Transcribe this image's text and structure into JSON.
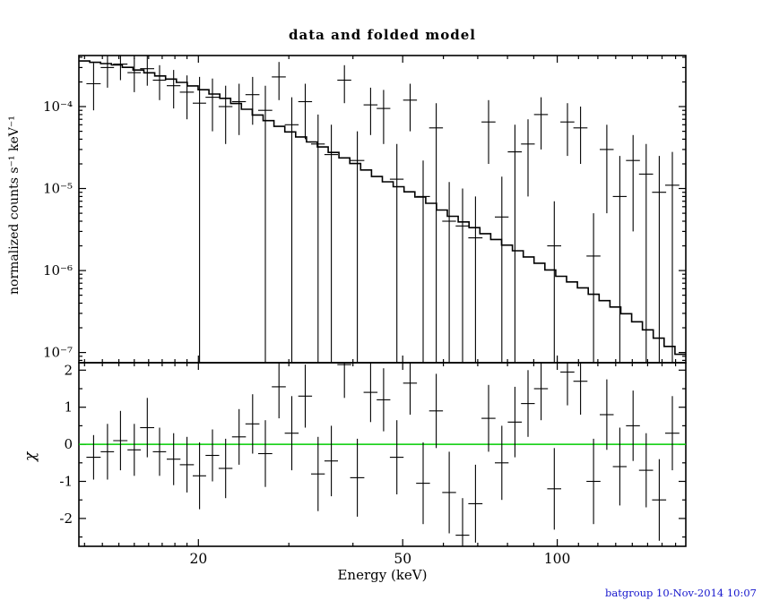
{
  "header": {
    "title": "data and folded model"
  },
  "footer": {
    "credit": "batgroup 10-Nov-2014 10:07",
    "credit_color": "#1515cc"
  },
  "colors": {
    "frame": "#000000",
    "model_line": "#000000",
    "data_marks": "#000000",
    "zero_line": "#00cc00",
    "background": "#ffffff"
  },
  "chart_data": {
    "type": "scatter",
    "subtype": "xspec-spectrum-with-residuals",
    "title": "data and folded model",
    "x_axis": {
      "label": "Energy (keV)",
      "scale": "log",
      "range": [
        11.7,
        178
      ],
      "major_ticks": [
        {
          "v": 20,
          "label": "20"
        },
        {
          "v": 50,
          "label": "50"
        },
        {
          "v": 100,
          "label": "100"
        }
      ],
      "minor_ticks": [
        12,
        13,
        14,
        15,
        16,
        17,
        18,
        19,
        30,
        40,
        60,
        70,
        80,
        90,
        110,
        120,
        130,
        140,
        150,
        160,
        170
      ]
    },
    "top_panel": {
      "ylabel": "normalized counts s⁻¹ keV⁻¹",
      "scale": "log",
      "range": [
        7.5e-08,
        0.00042
      ],
      "major_ticks": [
        {
          "v": 0.0001,
          "label": "10⁻⁴"
        },
        {
          "v": 1e-05,
          "label": "10⁻⁵"
        },
        {
          "v": 1e-06,
          "label": "10⁻⁶"
        },
        {
          "v": 1e-07,
          "label": "10⁻⁷"
        }
      ]
    },
    "bottom_panel": {
      "ylabel": "χ",
      "scale": "linear",
      "range": [
        -2.75,
        2.2
      ],
      "major_ticks": [
        {
          "v": -2,
          "label": "-2"
        },
        {
          "v": -1,
          "label": "-1"
        },
        {
          "v": 0,
          "label": "0"
        },
        {
          "v": 1,
          "label": "1"
        },
        {
          "v": 2,
          "label": "2"
        }
      ],
      "minor_ticks": [
        -2.5,
        -1.5,
        -0.5,
        0.5,
        1.5
      ],
      "zero_line": 0
    },
    "model_histogram": {
      "description": "folded model, stepped histogram, read from plot",
      "energies": [
        12,
        14,
        16,
        18,
        20,
        23,
        26,
        30,
        35,
        40,
        45,
        50,
        55,
        61,
        68,
        75,
        83,
        91,
        100,
        110,
        122,
        135,
        150,
        165,
        178
      ],
      "values": [
        0.00036,
        0.00032,
        0.00026,
        0.00021,
        0.00017,
        0.00012,
        8e-05,
        5e-05,
        3.2e-05,
        2.1e-05,
        1.35e-05,
        1e-05,
        7.5e-06,
        5e-06,
        3.5e-06,
        2.5e-06,
        1.8e-06,
        1.3e-06,
        9e-07,
        6.6e-07,
        4.5e-07,
        3.1e-07,
        1.9e-07,
        1.2e-07,
        8.5e-08
      ]
    },
    "points_columns": [
      "energy_keV",
      "xerr_keV",
      "value",
      "err_lo_value",
      "err_hi_value",
      "chi",
      "chi_err"
    ],
    "points": [
      [
        12.5,
        0.4,
        0.00019,
        9e-05,
        0.00034,
        -0.35,
        0.6
      ],
      [
        13.3,
        0.4,
        0.0003,
        0.00017,
        0.00044,
        -0.2,
        0.75
      ],
      [
        14.1,
        0.45,
        0.00033,
        0.00021,
        0.00046,
        0.1,
        0.8
      ],
      [
        15.0,
        0.45,
        0.00026,
        0.00015,
        0.00039,
        -0.15,
        0.7
      ],
      [
        15.9,
        0.5,
        0.00029,
        0.00018,
        0.00042,
        0.45,
        0.8
      ],
      [
        16.8,
        0.5,
        0.00021,
        0.00012,
        0.00032,
        -0.2,
        0.65
      ],
      [
        17.9,
        0.55,
        0.00018,
        9.5e-05,
        0.00028,
        -0.4,
        0.7
      ],
      [
        19.0,
        0.6,
        0.00015,
        7e-05,
        0.00024,
        -0.55,
        0.75
      ],
      [
        20.1,
        0.6,
        0.00011,
        2e-09,
        0.00023,
        -0.85,
        0.9
      ],
      [
        21.3,
        0.65,
        0.00013,
        5e-05,
        0.00022,
        -0.3,
        0.7
      ],
      [
        22.6,
        0.7,
        0.0001,
        3.5e-05,
        0.00018,
        -0.65,
        0.8
      ],
      [
        24.0,
        0.75,
        0.000115,
        4.5e-05,
        0.00019,
        0.2,
        0.75
      ],
      [
        25.5,
        0.8,
        0.00014,
        6e-05,
        0.00023,
        0.55,
        0.8
      ],
      [
        27.0,
        0.85,
        9e-05,
        2e-09,
        0.00018,
        -0.25,
        0.9
      ],
      [
        28.7,
        0.9,
        0.00023,
        0.00012,
        0.00035,
        1.55,
        0.85
      ],
      [
        30.4,
        0.95,
        6e-05,
        2e-09,
        0.00013,
        0.3,
        1.0
      ],
      [
        32.3,
        1.0,
        0.000115,
        4e-05,
        0.00019,
        1.3,
        0.85
      ],
      [
        34.2,
        1.05,
        3.5e-05,
        2e-09,
        8e-05,
        -0.8,
        1.0
      ],
      [
        36.3,
        1.1,
        2.6e-05,
        2e-09,
        6e-05,
        -0.45,
        0.95
      ],
      [
        38.5,
        1.2,
        0.00021,
        0.00011,
        0.00032,
        2.15,
        0.9
      ],
      [
        40.8,
        1.3,
        2.2e-05,
        2e-09,
        5e-05,
        -0.9,
        1.05
      ],
      [
        43.3,
        1.35,
        0.000105,
        4.5e-05,
        0.00017,
        1.4,
        0.8
      ],
      [
        45.9,
        1.4,
        9.5e-05,
        3.5e-05,
        0.00016,
        1.2,
        0.85
      ],
      [
        48.7,
        1.5,
        1.3e-05,
        2e-09,
        3.5e-05,
        -0.35,
        1.0
      ],
      [
        51.7,
        1.6,
        0.00012,
        5e-05,
        0.00019,
        1.65,
        0.85
      ],
      [
        54.8,
        1.7,
        8e-06,
        2e-09,
        2.2e-05,
        -1.05,
        1.1
      ],
      [
        58.1,
        1.8,
        5.5e-05,
        2e-09,
        0.00011,
        0.9,
        1.0
      ],
      [
        61.6,
        1.9,
        4e-06,
        2e-09,
        1.2e-05,
        -1.3,
        1.1
      ],
      [
        65.4,
        2.0,
        3.5e-06,
        2e-09,
        1e-05,
        -2.45,
        1.0
      ],
      [
        69.3,
        2.2,
        2.5e-06,
        2e-09,
        8e-06,
        -1.6,
        1.05
      ],
      [
        73.5,
        2.3,
        6.5e-05,
        2e-05,
        0.00012,
        0.7,
        0.9
      ],
      [
        78.0,
        2.4,
        4.5e-06,
        2e-09,
        1.4e-05,
        -0.5,
        1.0
      ],
      [
        82.7,
        2.6,
        2.8e-05,
        2e-09,
        6e-05,
        0.6,
        0.95
      ],
      [
        87.7,
        2.7,
        3.5e-05,
        8e-06,
        7e-05,
        1.1,
        0.9
      ],
      [
        93.0,
        2.9,
        8e-05,
        3e-05,
        0.00013,
        1.5,
        0.85
      ],
      [
        98.7,
        3.1,
        2e-06,
        2e-09,
        7e-06,
        -1.2,
        1.1
      ],
      [
        104.7,
        3.3,
        6.5e-05,
        2.5e-05,
        0.00011,
        1.95,
        0.9
      ],
      [
        111.0,
        3.5,
        5.5e-05,
        2e-05,
        0.0001,
        1.7,
        0.9
      ],
      [
        117.7,
        3.7,
        1.5e-06,
        2e-09,
        5e-06,
        -1.0,
        1.15
      ],
      [
        124.9,
        3.9,
        3e-05,
        5e-06,
        6e-05,
        0.8,
        0.95
      ],
      [
        132.4,
        4.1,
        8e-06,
        2e-09,
        2.5e-05,
        -0.6,
        1.05
      ],
      [
        140.5,
        4.4,
        2.2e-05,
        3e-06,
        4.5e-05,
        0.5,
        0.95
      ],
      [
        149.0,
        4.7,
        1.5e-05,
        2e-09,
        3.5e-05,
        -0.7,
        1.0
      ],
      [
        158.0,
        5.0,
        9e-06,
        2e-09,
        2.5e-05,
        -1.5,
        1.1
      ],
      [
        167.6,
        5.3,
        1.1e-05,
        2e-09,
        2.8e-05,
        0.3,
        1.0
      ]
    ]
  }
}
